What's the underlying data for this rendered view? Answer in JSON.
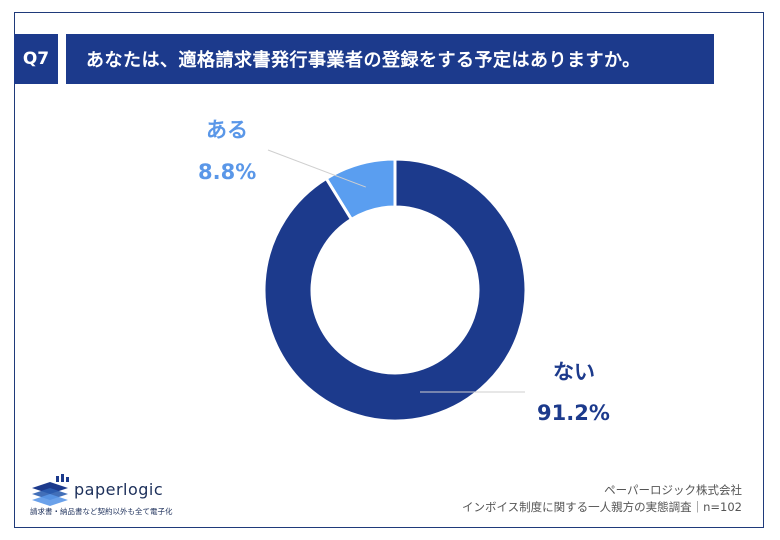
{
  "header": {
    "badge": "Q7",
    "question": "あなたは、適格請求書発行事業者の登録をする予定はありますか。"
  },
  "chart_data": {
    "type": "pie",
    "style": "donut",
    "slices": [
      {
        "label": "ない",
        "value": 91.2,
        "display": "91.2%",
        "color": "#1c3a8c"
      },
      {
        "label": "ある",
        "value": 8.8,
        "display": "8.8%",
        "color": "#5a9ef0"
      }
    ],
    "start": "12 o'clock",
    "direction": "clockwise"
  },
  "logo": {
    "wordmark": "paperlogic",
    "tagline": "請求書・納品書など契約以外も全て電子化"
  },
  "footer": {
    "company": "ペーパーロジック株式会社",
    "survey": "インボイス制度に関する一人親方の実態調査｜n=102"
  }
}
